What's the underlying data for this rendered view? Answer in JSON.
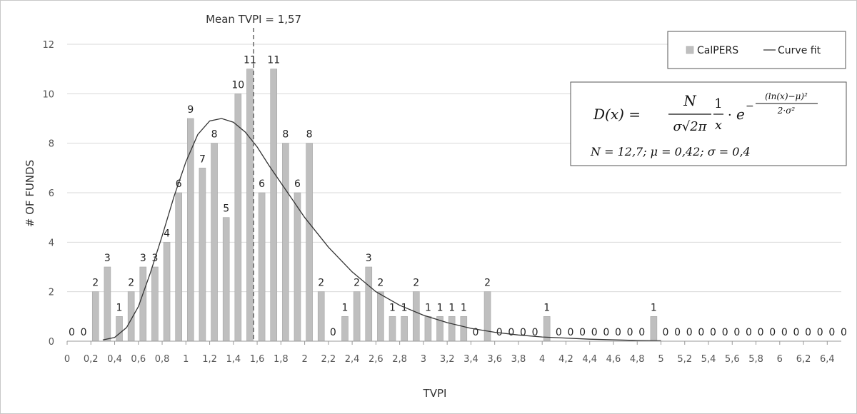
{
  "chart_data": {
    "type": "bar",
    "title": "",
    "xlabel": "TVPI",
    "ylabel": "# OF FUNDS",
    "ylim": [
      0,
      12
    ],
    "y_ticks": [
      "0",
      "2",
      "4",
      "6",
      "8",
      "10",
      "12"
    ],
    "x_tick_labels": [
      "0",
      "0,2",
      "0,4",
      "0,6",
      "0,8",
      "1",
      "1,2",
      "1,4",
      "1,6",
      "1,8",
      "2",
      "2,2",
      "2,4",
      "2,6",
      "2,8",
      "3",
      "3,2",
      "3,4",
      "3,6",
      "3,8",
      "4",
      "4,2",
      "4,4",
      "4,6",
      "4,8",
      "5",
      "5,2",
      "5,4",
      "5,6",
      "5,8",
      "6",
      "6,2",
      "6,4"
    ],
    "series": [
      {
        "name": "CalPERS",
        "color": "#bfbfbf",
        "values": [
          0,
          0,
          2,
          3,
          1,
          2,
          3,
          3,
          4,
          6,
          9,
          7,
          8,
          5,
          10,
          11,
          6,
          11,
          8,
          6,
          8,
          2,
          0,
          1,
          2,
          3,
          2,
          1,
          1,
          2,
          1,
          1,
          1,
          1,
          0,
          2,
          0,
          0,
          0,
          0,
          1,
          0,
          0,
          0,
          0,
          0,
          0,
          0,
          0,
          1,
          0,
          0,
          0,
          0,
          0,
          0,
          0,
          0,
          0,
          0,
          0,
          0,
          0,
          0,
          0,
          0
        ]
      },
      {
        "name": "Curve fit",
        "color": "#333333",
        "type": "line",
        "x": [
          0.3,
          0.4,
          0.5,
          0.6,
          0.7,
          0.8,
          0.9,
          1.0,
          1.1,
          1.2,
          1.3,
          1.4,
          1.5,
          1.6,
          1.7,
          1.8,
          1.9,
          2.0,
          2.2,
          2.4,
          2.6,
          2.8,
          3.0,
          3.2,
          3.4,
          3.6,
          3.8,
          4.0,
          4.4,
          4.8,
          5.0
        ],
        "y": [
          0.05,
          0.15,
          0.55,
          1.4,
          2.75,
          4.25,
          5.85,
          7.25,
          8.35,
          8.9,
          9.0,
          8.85,
          8.45,
          7.85,
          7.1,
          6.4,
          5.7,
          5.0,
          3.8,
          2.8,
          2.0,
          1.45,
          1.05,
          0.75,
          0.52,
          0.36,
          0.25,
          0.17,
          0.08,
          0.03,
          0.02
        ]
      }
    ],
    "mean_line": {
      "value": 1.57,
      "label": "Mean TVPI = 1,57"
    },
    "legend": {
      "position": "top-right",
      "entries": [
        "CalPERS",
        "Curve fit"
      ]
    },
    "formula": {
      "lhs": "D(x) =",
      "numerator": "N",
      "denominator": "σ√2π",
      "one": "1",
      "x": "x",
      "dot": "·",
      "base": "e",
      "exp_minus": "−",
      "exp_num": "(ln(x)−μ)²",
      "exp_den": "2·σ²",
      "params": "N = 12,7; μ = 0,42; σ = 0,4"
    }
  }
}
